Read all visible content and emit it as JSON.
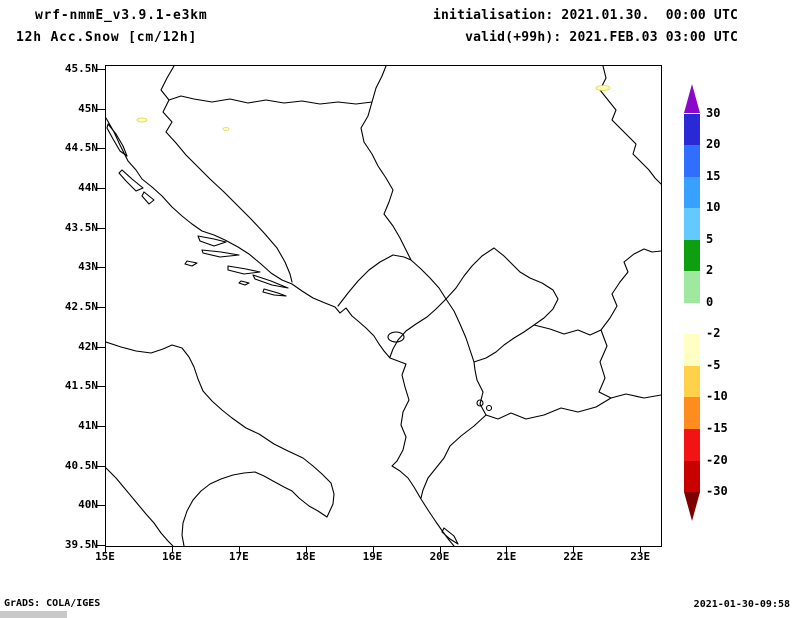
{
  "header": {
    "model_line": "wrf-nmmE_v3.9.1-e3km",
    "variable_line": "12h Acc.Snow [cm/12h]",
    "init_line": "initialisation: 2021.01.30.  00:00 UTC",
    "valid_line": "valid(+99h): 2021.FEB.03 03:00 UTC"
  },
  "footer": {
    "grads_credit": "GrADS: COLA/IGES",
    "timestamp": "2021-01-30-09:58"
  },
  "map": {
    "lat_ticks": [
      "45.5N",
      "45N",
      "44.5N",
      "44N",
      "43.5N",
      "43N",
      "42.5N",
      "42N",
      "41.5N",
      "41N",
      "40.5N",
      "40N",
      "39.5N"
    ],
    "lon_ticks": [
      "15E",
      "16E",
      "17E",
      "18E",
      "19E",
      "20E",
      "21E",
      "22E",
      "23E"
    ]
  },
  "colorbar": {
    "levels": [
      "30",
      "20",
      "15",
      "10",
      "5",
      "2",
      "0",
      "-2",
      "-5",
      "-10",
      "-15",
      "-20",
      "-30"
    ],
    "arrow_top_color": "#8a08c8",
    "arrow_bottom_color": "#7d0000",
    "segment_colors": [
      "#2929d6",
      "#2f6eff",
      "#38a1ff",
      "#63c9ff",
      "#0f9e0f",
      "#a0e8a0",
      "#ffffff",
      "#ffffc3",
      "#ffd24a",
      "#ff8c1e",
      "#f21414",
      "#c80000"
    ]
  },
  "chart_data": {
    "type": "heatmap",
    "title": "12h Acc.Snow [cm/12h]",
    "subtitle": "wrf-nmmE_v3.9.1-e3km",
    "region": "Adriatic / western Balkans with country borders and coastlines",
    "x": {
      "label": "longitude",
      "range_deg_east": [
        15,
        23.3
      ],
      "ticks": [
        "15E",
        "16E",
        "17E",
        "18E",
        "19E",
        "20E",
        "21E",
        "22E",
        "23E"
      ]
    },
    "y": {
      "label": "latitude",
      "range_deg_north": [
        39.5,
        45.55
      ],
      "ticks": [
        "45.5N",
        "45N",
        "44.5N",
        "44N",
        "43.5N",
        "43N",
        "42.5N",
        "42N",
        "41.5N",
        "41N",
        "40.5N",
        "40N",
        "39.5N"
      ]
    },
    "colorbar_levels_cm": [
      30,
      20,
      15,
      10,
      5,
      2,
      0,
      -2,
      -5,
      -10,
      -15,
      -20,
      -30
    ],
    "colorbar_colors_top_to_bottom": [
      "#8a08c8",
      "#2929d6",
      "#2f6eff",
      "#38a1ff",
      "#63c9ff",
      "#0f9e0f",
      "#a0e8a0",
      "#ffffff",
      "#ffffc3",
      "#ffd24a",
      "#ff8c1e",
      "#f21414",
      "#c80000",
      "#7d0000"
    ],
    "legend_position": "right",
    "grid": false,
    "field_values": "field essentially blank (≈0 cm/12h) over whole domain; only a few trace pale-yellow contour specks near 45N 15.5E, 43.7N 16.8E and 45.3N 22.4E"
  }
}
